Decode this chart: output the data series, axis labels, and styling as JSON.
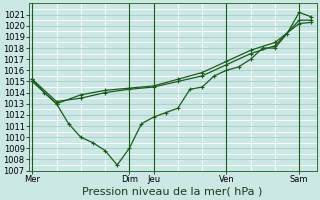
{
  "background_color": "#cce8e4",
  "grid_color_major": "#aacccc",
  "grid_color_minor": "#ffffff",
  "line_color": "#1a5c1a",
  "marker_color": "#1a5c1a",
  "ylim": [
    1007,
    1022
  ],
  "yticks": [
    1007,
    1008,
    1009,
    1010,
    1011,
    1012,
    1013,
    1014,
    1015,
    1016,
    1017,
    1018,
    1019,
    1020,
    1021
  ],
  "xlabel": "Pression niveau de la mer( hPa )",
  "xlabel_fontsize": 8,
  "tick_fontsize": 6,
  "xtick_labels": [
    "Mer",
    "Dim",
    "Jeu",
    "Ven",
    "Sam"
  ],
  "xtick_positions": [
    0.0,
    2.8,
    3.5,
    5.6,
    7.7
  ],
  "vline_positions": [
    0.0,
    2.8,
    3.5,
    5.6,
    7.7
  ],
  "xlim": [
    -0.1,
    8.2
  ],
  "series1_x": [
    0.0,
    0.35,
    0.7,
    1.05,
    1.4,
    1.75,
    2.1,
    2.45,
    2.8,
    3.15,
    3.5,
    3.85,
    4.2,
    4.55,
    4.9,
    5.25,
    5.6,
    5.95,
    6.3,
    6.65,
    7.0,
    7.35,
    7.7,
    8.05
  ],
  "series1_y": [
    1015.2,
    1014.0,
    1013.0,
    1011.2,
    1010.0,
    1009.5,
    1008.8,
    1007.5,
    1009.0,
    1011.2,
    1011.8,
    1012.2,
    1012.6,
    1014.3,
    1014.5,
    1015.5,
    1016.0,
    1016.3,
    1017.0,
    1018.0,
    1018.0,
    1019.3,
    1021.2,
    1020.8
  ],
  "series2_x": [
    0.0,
    0.7,
    1.4,
    2.1,
    2.8,
    3.5,
    4.2,
    4.9,
    5.6,
    6.3,
    7.0,
    7.7,
    8.05
  ],
  "series2_y": [
    1015.2,
    1013.2,
    1013.5,
    1014.0,
    1014.3,
    1014.5,
    1015.0,
    1015.5,
    1016.5,
    1017.5,
    1018.2,
    1020.5,
    1020.5
  ],
  "series3_x": [
    0.0,
    0.7,
    1.4,
    2.1,
    2.8,
    3.5,
    4.2,
    4.9,
    5.6,
    6.3,
    7.0,
    7.7,
    8.05
  ],
  "series3_y": [
    1015.0,
    1013.0,
    1013.8,
    1014.2,
    1014.4,
    1014.6,
    1015.2,
    1015.8,
    1016.8,
    1017.8,
    1018.5,
    1020.2,
    1020.3
  ]
}
